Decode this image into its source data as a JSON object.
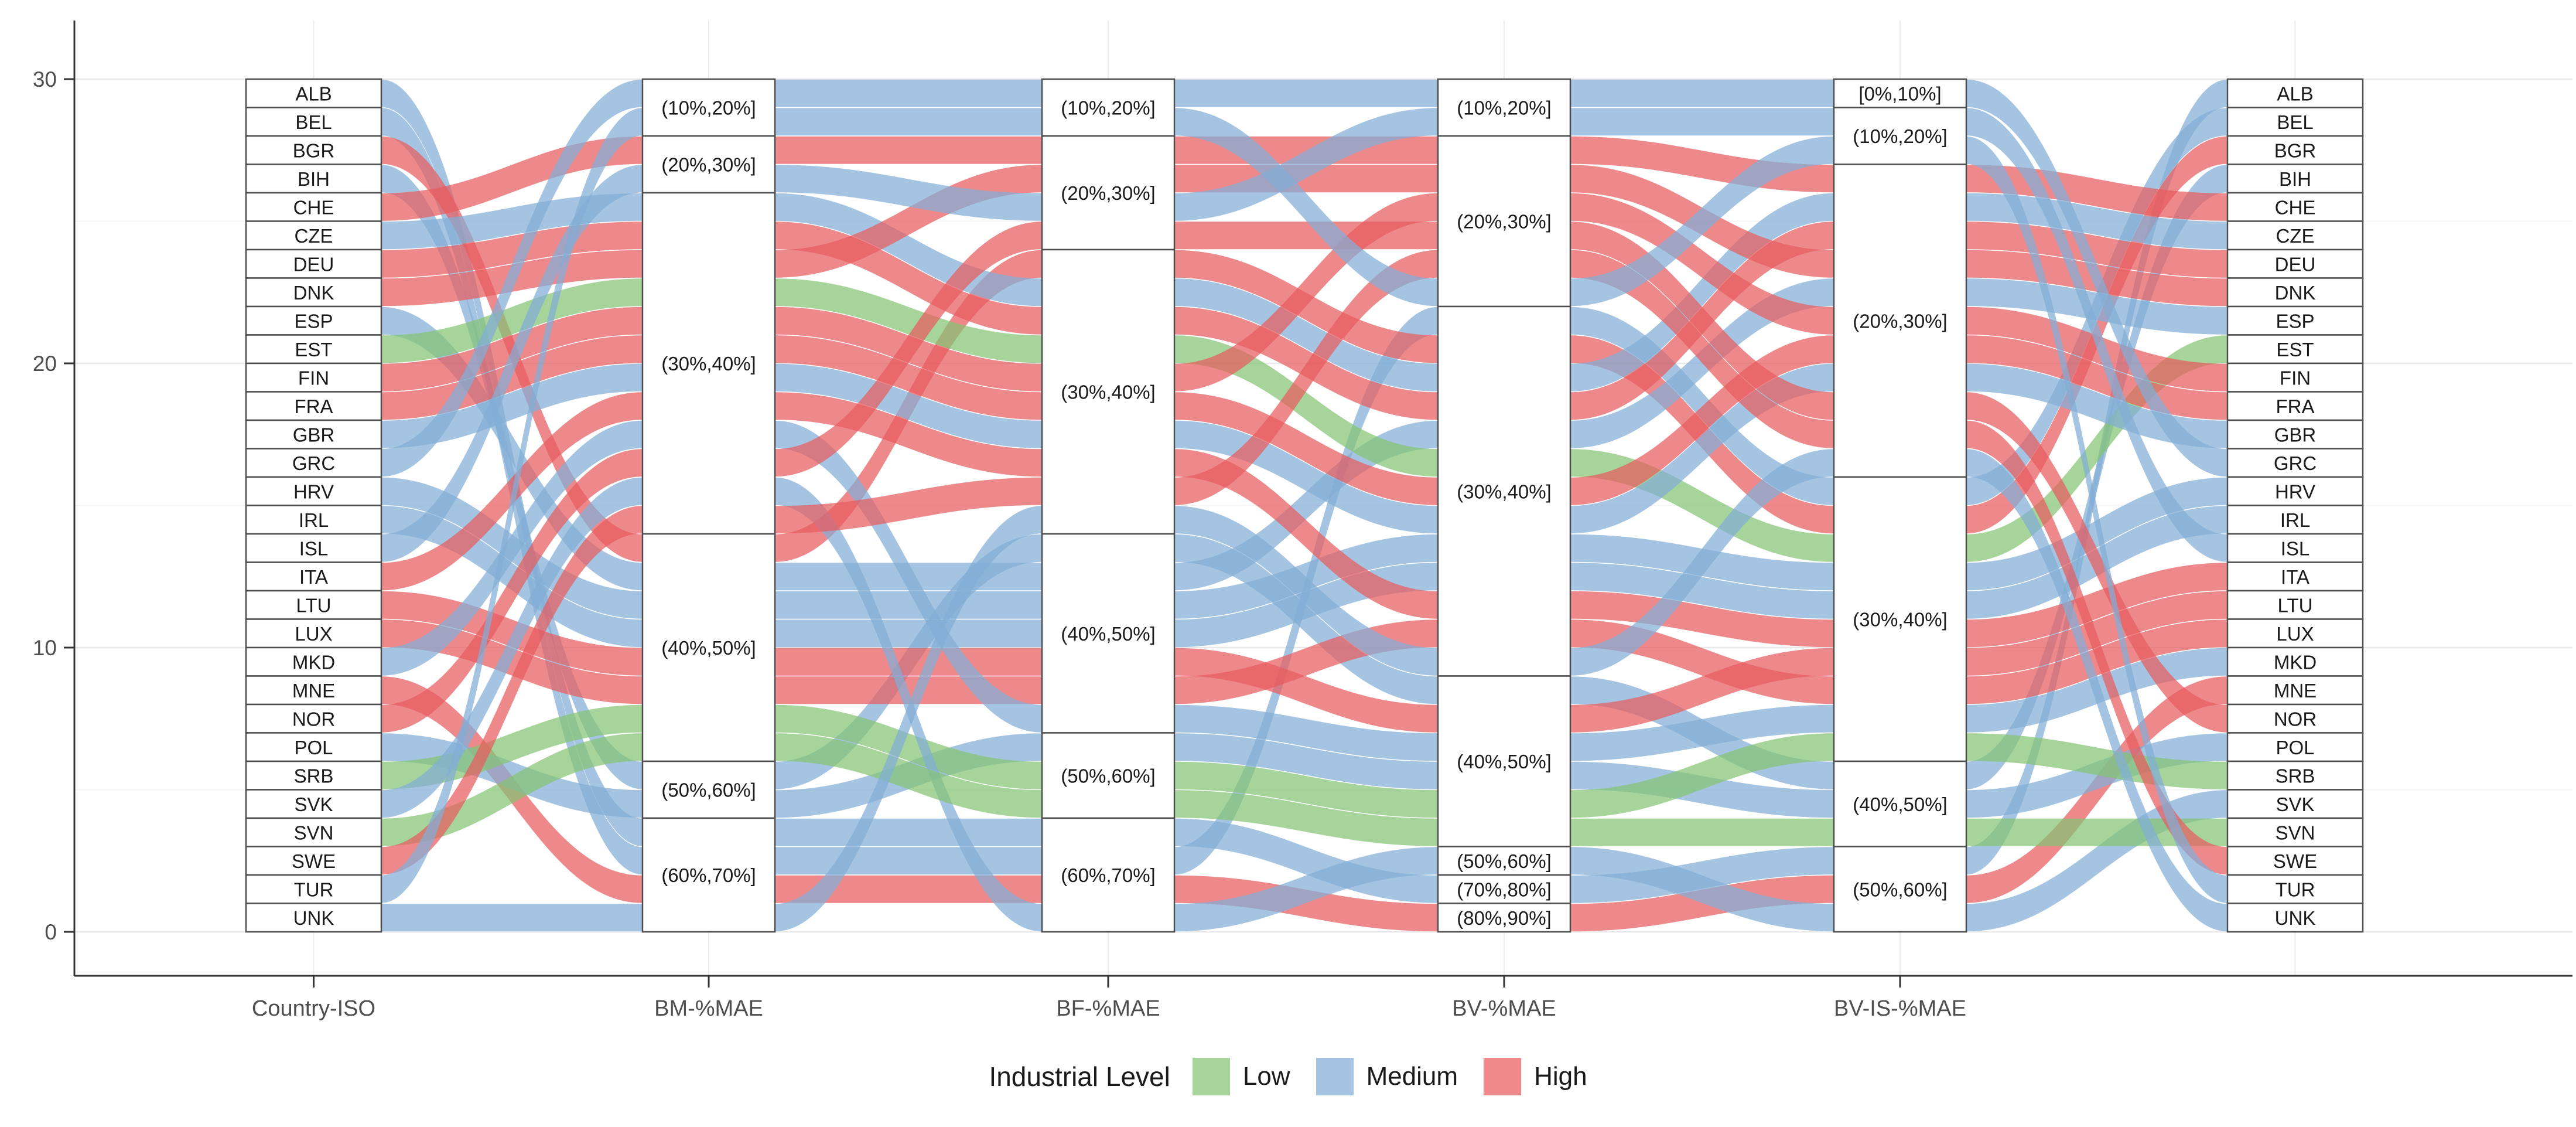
{
  "legend": {
    "title": "Industrial Level",
    "items": [
      {
        "label": "Low",
        "color": "#a6d49a"
      },
      {
        "label": "Medium",
        "color": "#a5c4e1"
      },
      {
        "label": "High",
        "color": "#ee8a8b"
      }
    ]
  },
  "colors": {
    "ribbon_low": "#83c373",
    "ribbon_medium": "#82add5",
    "ribbon_high": "#e75c5e",
    "ribbon_opacity": 0.72,
    "stratum_fill": "#ffffff",
    "stratum_border": "#4d4d4d",
    "axis_line": "#333333",
    "tick_label": "#4d4d4d",
    "stratum_label": "#1a1a1a",
    "gridline_major": "#e8e8e8",
    "gridline_minor": "#f5f5f5",
    "gridline_vertical": "#ececec"
  },
  "chart_data": {
    "type": "alluvial",
    "x_axis_labels": [
      "Country-ISO",
      "BM-%MAE",
      "BF-%MAE",
      "BV-%MAE",
      "BV-IS-%MAE"
    ],
    "y_ticks": [
      0,
      10,
      20,
      30
    ],
    "y_minor_ticks": [
      5,
      15,
      25
    ],
    "y_range": [
      0,
      30
    ],
    "legend_title": "Industrial Level",
    "legend_entries": [
      "Low",
      "Medium",
      "High"
    ],
    "strata": {
      "bm": [
        {
          "label": "(10%,20%]",
          "count": 2
        },
        {
          "label": "(20%,30%]",
          "count": 2
        },
        {
          "label": "(30%,40%]",
          "count": 12
        },
        {
          "label": "(40%,50%]",
          "count": 8
        },
        {
          "label": "(50%,60%]",
          "count": 2
        },
        {
          "label": "(60%,70%]",
          "count": 4
        }
      ],
      "bf": [
        {
          "label": "(10%,20%]",
          "count": 2
        },
        {
          "label": "(20%,30%]",
          "count": 4
        },
        {
          "label": "(30%,40%]",
          "count": 10
        },
        {
          "label": "(40%,50%]",
          "count": 7
        },
        {
          "label": "(50%,60%]",
          "count": 3
        },
        {
          "label": "(60%,70%]",
          "count": 4
        }
      ],
      "bv": [
        {
          "label": "(10%,20%]",
          "count": 2
        },
        {
          "label": "(20%,30%]",
          "count": 6
        },
        {
          "label": "(30%,40%]",
          "count": 13
        },
        {
          "label": "(40%,50%]",
          "count": 6
        },
        {
          "label": "(50%,60%]",
          "count": 1
        },
        {
          "label": "(70%,80%]",
          "count": 1
        },
        {
          "label": "(80%,90%]",
          "count": 1
        }
      ],
      "bvis": [
        {
          "label": "[0%,10%]",
          "count": 1
        },
        {
          "label": "(10%,20%]",
          "count": 2
        },
        {
          "label": "(20%,30%]",
          "count": 11
        },
        {
          "label": "(30%,40%]",
          "count": 10
        },
        {
          "label": "(40%,50%]",
          "count": 3
        },
        {
          "label": "(50%,60%]",
          "count": 3
        }
      ]
    },
    "countries": [
      {
        "code": "ALB",
        "industrial_level": "Medium",
        "bins_estimated": {
          "bm": 5,
          "bf": 5,
          "bv": 5,
          "bvis": 5
        }
      },
      {
        "code": "BEL",
        "industrial_level": "Medium",
        "bins_estimated": {
          "bm": 5,
          "bf": 5,
          "bv": 2,
          "bvis": 3
        }
      },
      {
        "code": "BGR",
        "industrial_level": "High",
        "bins_estimated": {
          "bm": 3,
          "bf": 2,
          "bv": 2,
          "bvis": 3
        }
      },
      {
        "code": "BIH",
        "industrial_level": "Medium",
        "bins_estimated": {
          "bm": 4,
          "bf": 3,
          "bv": 3,
          "bvis": 4
        }
      },
      {
        "code": "CHE",
        "industrial_level": "High",
        "bins_estimated": {
          "bm": 1,
          "bf": 1,
          "bv": 1,
          "bvis": 2
        }
      },
      {
        "code": "CZE",
        "industrial_level": "Medium",
        "bins_estimated": {
          "bm": 2,
          "bf": 2,
          "bv": 2,
          "bvis": 2
        }
      },
      {
        "code": "DEU",
        "industrial_level": "High",
        "bins_estimated": {
          "bm": 2,
          "bf": 2,
          "bv": 2,
          "bvis": 2
        }
      },
      {
        "code": "DNK",
        "industrial_level": "High",
        "bins_estimated": {
          "bm": 2,
          "bf": 1,
          "bv": 1,
          "bvis": 2
        }
      },
      {
        "code": "ESP",
        "industrial_level": "Medium",
        "bins_estimated": {
          "bm": 3,
          "bf": 3,
          "bv": 2,
          "bvis": 2
        }
      },
      {
        "code": "EST",
        "industrial_level": "Low",
        "bins_estimated": {
          "bm": 2,
          "bf": 2,
          "bv": 2,
          "bvis": 3
        }
      },
      {
        "code": "FIN",
        "industrial_level": "High",
        "bins_estimated": {
          "bm": 2,
          "bf": 2,
          "bv": 1,
          "bvis": 2
        }
      },
      {
        "code": "FRA",
        "industrial_level": "High",
        "bins_estimated": {
          "bm": 2,
          "bf": 2,
          "bv": 2,
          "bvis": 2
        }
      },
      {
        "code": "GBR",
        "industrial_level": "Medium",
        "bins_estimated": {
          "bm": 2,
          "bf": 2,
          "bv": 2,
          "bvis": 2
        }
      },
      {
        "code": "GRC",
        "industrial_level": "Medium",
        "bins_estimated": {
          "bm": 0,
          "bf": 0,
          "bv": 0,
          "bvis": 0
        }
      },
      {
        "code": "HRV",
        "industrial_level": "Medium",
        "bins_estimated": {
          "bm": 3,
          "bf": 3,
          "bv": 2,
          "bvis": 3
        }
      },
      {
        "code": "IRL",
        "industrial_level": "Medium",
        "bins_estimated": {
          "bm": 3,
          "bf": 3,
          "bv": 2,
          "bvis": 3
        }
      },
      {
        "code": "ISL",
        "industrial_level": "Medium",
        "bins_estimated": {
          "bm": 1,
          "bf": 1,
          "bv": 0,
          "bvis": 1
        }
      },
      {
        "code": "ITA",
        "industrial_level": "High",
        "bins_estimated": {
          "bm": 2,
          "bf": 2,
          "bv": 2,
          "bvis": 3
        }
      },
      {
        "code": "LTU",
        "industrial_level": "High",
        "bins_estimated": {
          "bm": 3,
          "bf": 3,
          "bv": 3,
          "bvis": 3
        }
      },
      {
        "code": "LUX",
        "industrial_level": "High",
        "bins_estimated": {
          "bm": 3,
          "bf": 3,
          "bv": 2,
          "bvis": 3
        }
      },
      {
        "code": "MKD",
        "industrial_level": "Medium",
        "bins_estimated": {
          "bm": 2,
          "bf": 3,
          "bv": 3,
          "bvis": 3
        }
      },
      {
        "code": "MNE",
        "industrial_level": "High",
        "bins_estimated": {
          "bm": 5,
          "bf": 5,
          "bv": 6,
          "bvis": 5
        }
      },
      {
        "code": "NOR",
        "industrial_level": "High",
        "bins_estimated": {
          "bm": 2,
          "bf": 1,
          "bv": 1,
          "bvis": 2
        }
      },
      {
        "code": "POL",
        "industrial_level": "Medium",
        "bins_estimated": {
          "bm": 4,
          "bf": 4,
          "bv": 3,
          "bvis": 4
        }
      },
      {
        "code": "SRB",
        "industrial_level": "Low",
        "bins_estimated": {
          "bm": 3,
          "bf": 4,
          "bv": 3,
          "bvis": 3
        }
      },
      {
        "code": "SVK",
        "industrial_level": "Medium",
        "bins_estimated": {
          "bm": 2,
          "bf": 5,
          "bv": 4,
          "bvis": 5
        }
      },
      {
        "code": "SVN",
        "industrial_level": "Low",
        "bins_estimated": {
          "bm": 3,
          "bf": 4,
          "bv": 3,
          "bvis": 4
        }
      },
      {
        "code": "SWE",
        "industrial_level": "High",
        "bins_estimated": {
          "bm": 2,
          "bf": 2,
          "bv": 1,
          "bvis": 2
        }
      },
      {
        "code": "TUR",
        "industrial_level": "Medium",
        "bins_estimated": {
          "bm": 0,
          "bf": 0,
          "bv": 1,
          "bvis": 1
        }
      },
      {
        "code": "UNK",
        "industrial_level": "Medium",
        "bins_estimated": {
          "bm": 5,
          "bf": 2,
          "bv": 2,
          "bvis": 2
        }
      }
    ]
  }
}
